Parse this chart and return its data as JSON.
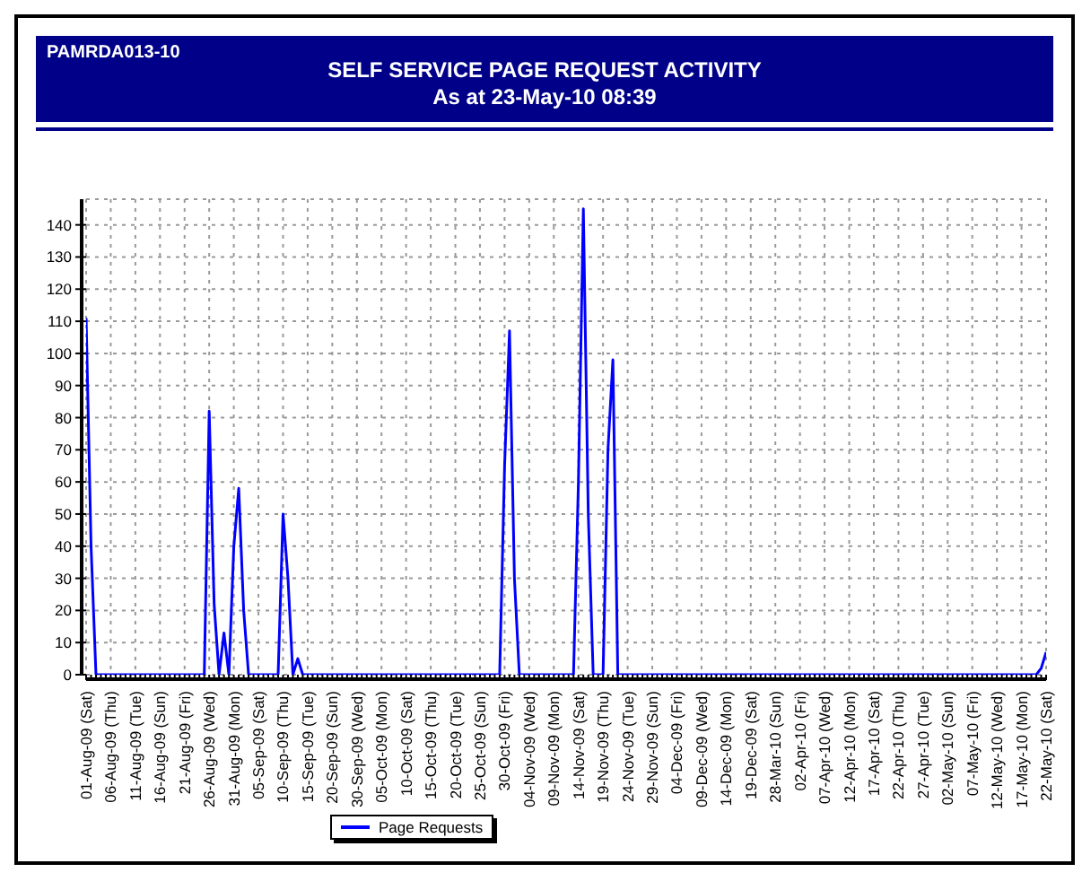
{
  "chart_data": {
    "type": "line",
    "title": "SELF SERVICE PAGE REQUEST ACTIVITY",
    "subtitle": "As at 23-May-10 08:39",
    "annotations": [
      "PAMRDA013-10"
    ],
    "categories": [
      "01-Aug-09 (Sat)",
      null,
      null,
      null,
      null,
      "06-Aug-09 (Thu)",
      null,
      null,
      null,
      null,
      "11-Aug-09 (Tue)",
      null,
      null,
      null,
      null,
      "16-Aug-09 (Sun)",
      null,
      null,
      null,
      null,
      "21-Aug-09 (Fri)",
      null,
      null,
      null,
      null,
      "26-Aug-09 (Wed)",
      null,
      null,
      null,
      null,
      "31-Aug-09 (Mon)",
      null,
      null,
      null,
      null,
      "05-Sep-09 (Sat)",
      null,
      null,
      null,
      null,
      "10-Sep-09 (Thu)",
      null,
      null,
      null,
      null,
      "15-Sep-09 (Tue)",
      null,
      null,
      null,
      null,
      "20-Sep-09 (Sun)",
      null,
      null,
      null,
      null,
      "30-Sep-09 (Wed)",
      null,
      null,
      null,
      null,
      "05-Oct-09 (Mon)",
      null,
      null,
      null,
      null,
      "10-Oct-09 (Sat)",
      null,
      null,
      null,
      null,
      "15-Oct-09 (Thu)",
      null,
      null,
      null,
      null,
      "20-Oct-09 (Tue)",
      null,
      null,
      null,
      null,
      "25-Oct-09 (Sun)",
      null,
      null,
      null,
      null,
      "30-Oct-09 (Fri)",
      null,
      null,
      null,
      null,
      "04-Nov-09 (Wed)",
      null,
      null,
      null,
      null,
      "09-Nov-09 (Mon)",
      null,
      null,
      null,
      null,
      "14-Nov-09 (Sat)",
      null,
      null,
      null,
      null,
      "19-Nov-09 (Thu)",
      null,
      null,
      null,
      null,
      "24-Nov-09 (Tue)",
      null,
      null,
      null,
      null,
      "29-Nov-09 (Sun)",
      null,
      null,
      null,
      null,
      "04-Dec-09 (Fri)",
      null,
      null,
      null,
      null,
      "09-Dec-09 (Wed)",
      null,
      null,
      null,
      null,
      "14-Dec-09 (Mon)",
      null,
      null,
      null,
      null,
      "19-Dec-09 (Sat)",
      null,
      null,
      null,
      null,
      "28-Mar-10 (Sun)",
      null,
      null,
      null,
      null,
      "02-Apr-10 (Fri)",
      null,
      null,
      null,
      null,
      "07-Apr-10 (Wed)",
      null,
      null,
      null,
      null,
      "12-Apr-10 (Mon)",
      null,
      null,
      null,
      null,
      "17-Apr-10 (Sat)",
      null,
      null,
      null,
      null,
      "22-Apr-10 (Thu)",
      null,
      null,
      null,
      null,
      "27-Apr-10 (Tue)",
      null,
      null,
      null,
      null,
      "02-May-10 (Sun)",
      null,
      null,
      null,
      null,
      "07-May-10 (Fri)",
      null,
      null,
      null,
      null,
      "12-May-10 (Wed)",
      null,
      null,
      null,
      null,
      "17-May-10 (Mon)",
      null,
      null,
      null,
      null,
      "22-May-10 (Sat)"
    ],
    "series": [
      {
        "name": "Page Requests",
        "color": "#0000ff",
        "values": [
          111,
          40,
          0,
          0,
          0,
          0,
          0,
          0,
          0,
          0,
          0,
          0,
          0,
          0,
          0,
          0,
          0,
          0,
          0,
          0,
          0,
          0,
          0,
          0,
          0,
          82,
          22,
          0,
          13,
          0,
          40,
          58,
          20,
          0,
          0,
          0,
          0,
          0,
          0,
          0,
          50,
          30,
          0,
          5,
          0,
          0,
          0,
          0,
          0,
          0,
          0,
          0,
          0,
          0,
          0,
          0,
          0,
          0,
          0,
          0,
          0,
          0,
          0,
          0,
          0,
          0,
          0,
          0,
          0,
          0,
          0,
          0,
          0,
          0,
          0,
          0,
          0,
          0,
          0,
          0,
          0,
          0,
          0,
          0,
          0,
          65,
          107,
          30,
          0,
          0,
          0,
          0,
          0,
          0,
          0,
          0,
          0,
          0,
          0,
          0,
          60,
          145,
          50,
          0,
          0,
          0,
          70,
          98,
          0,
          0,
          0,
          0,
          0,
          0,
          0,
          0,
          0,
          0,
          0,
          0,
          0,
          0,
          0,
          0,
          0,
          0,
          0,
          0,
          0,
          0,
          0,
          0,
          0,
          0,
          0,
          0,
          0,
          0,
          0,
          0,
          0,
          0,
          0,
          0,
          0,
          0,
          0,
          0,
          0,
          0,
          0,
          0,
          0,
          0,
          0,
          0,
          0,
          0,
          0,
          0,
          0,
          0,
          0,
          0,
          0,
          0,
          0,
          0,
          0,
          0,
          0,
          0,
          0,
          0,
          0,
          0,
          0,
          0,
          0,
          0,
          0,
          0,
          0,
          0,
          0,
          0,
          0,
          0,
          0,
          0,
          0,
          0,
          0,
          0,
          2,
          7
        ]
      }
    ],
    "ylim": [
      0,
      148
    ],
    "yticks": [
      0,
      10,
      20,
      30,
      40,
      50,
      60,
      70,
      80,
      90,
      100,
      110,
      120,
      130,
      140
    ],
    "grid": true,
    "legend": "bottom",
    "marker": "none",
    "line_style": "solid"
  }
}
